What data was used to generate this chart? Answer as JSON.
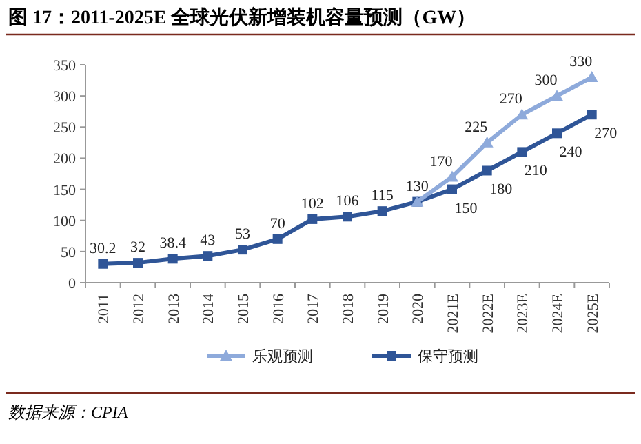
{
  "chart_data": {
    "type": "line",
    "title": "图 17：2011-2025E 全球光伏新增装机容量预测（GW）",
    "categories": [
      "2011",
      "2012",
      "2013",
      "2014",
      "2015",
      "2016",
      "2017",
      "2018",
      "2019",
      "2020",
      "2021E",
      "2022E",
      "2023E",
      "2024E",
      "2025E"
    ],
    "series": [
      {
        "name": "乐观预测",
        "color": "#8eaadb",
        "marker": "triangle",
        "values": [
          null,
          null,
          null,
          null,
          null,
          null,
          null,
          null,
          null,
          130,
          170,
          225,
          270,
          300,
          330
        ],
        "value_labels": [
          null,
          null,
          null,
          null,
          null,
          null,
          null,
          null,
          null,
          null,
          "170",
          "225",
          "270",
          "300",
          "330"
        ]
      },
      {
        "name": "保守预测",
        "color": "#2f5597",
        "marker": "square",
        "values": [
          30.2,
          32,
          38.4,
          43,
          53,
          70,
          102,
          106,
          115,
          130,
          150,
          180,
          210,
          240,
          270
        ],
        "value_labels": [
          "30.2",
          "32",
          "38.4",
          "43",
          "53",
          "70",
          "102",
          "106",
          "115",
          "130",
          "150",
          "180",
          "210",
          "240",
          "270"
        ]
      }
    ],
    "ylim": [
      0,
      350
    ],
    "yticks": [
      0,
      50,
      100,
      150,
      200,
      250,
      300,
      350
    ],
    "grid": false,
    "legend": "bottom",
    "annotations": [
      "数据来源：CPIA"
    ]
  }
}
